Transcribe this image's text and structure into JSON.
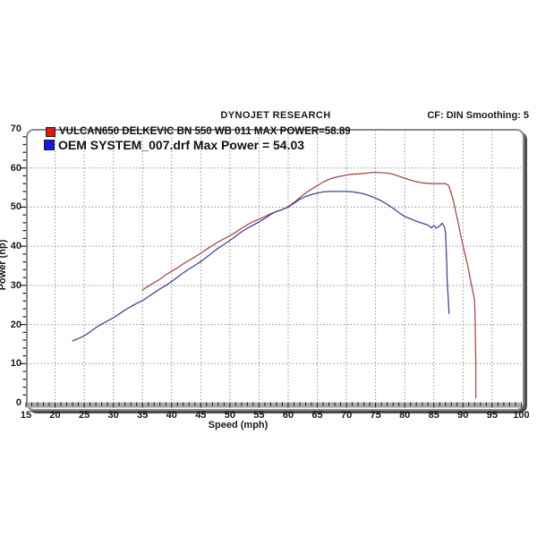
{
  "header": {
    "brand": "DYNOJET RESEARCH",
    "settings": "CF: DIN  Smoothing: 5"
  },
  "legend": {
    "swatch_colors": [
      "#e01818",
      "#1818e0"
    ]
  },
  "chart_data": {
    "type": "line",
    "title": "DYNOJET RESEARCH",
    "xlabel": "Speed (mph)",
    "ylabel": "Power (hp)",
    "xlim": [
      15,
      100
    ],
    "ylim": [
      0,
      70
    ],
    "x_ticks": [
      15,
      20,
      25,
      30,
      35,
      40,
      45,
      50,
      55,
      60,
      65,
      70,
      75,
      80,
      85,
      90,
      95,
      100
    ],
    "y_ticks": [
      0,
      10,
      20,
      30,
      40,
      50,
      60,
      70
    ],
    "x_minor_step": 1,
    "y_minor_step": 2,
    "grid": "dotted",
    "grid_color": "#8f8f8f",
    "legend_position": "top-left",
    "series": [
      {
        "name": "VULCAN650 DELKEVIC BN 550 WB 011 MAX POWER=58.89",
        "max_power": 58.89,
        "color": "#a84a4a",
        "points": [
          [
            35,
            28.8
          ],
          [
            36,
            29.8
          ],
          [
            37,
            30.7
          ],
          [
            38,
            31.6
          ],
          [
            39,
            32.7
          ],
          [
            40,
            33.6
          ],
          [
            41,
            34.5
          ],
          [
            42,
            35.5
          ],
          [
            43,
            36.4
          ],
          [
            44,
            37.3
          ],
          [
            45,
            38.2
          ],
          [
            46,
            39.2
          ],
          [
            47,
            40.2
          ],
          [
            48,
            41.1
          ],
          [
            49,
            41.9
          ],
          [
            50,
            42.7
          ],
          [
            51,
            43.6
          ],
          [
            52,
            44.6
          ],
          [
            53,
            45.5
          ],
          [
            54,
            46.3
          ],
          [
            55,
            46.9
          ],
          [
            56,
            47.6
          ],
          [
            57,
            48.3
          ],
          [
            58,
            48.9
          ],
          [
            59,
            49.4
          ],
          [
            60,
            50.1
          ],
          [
            61,
            51.2
          ],
          [
            62,
            52.4
          ],
          [
            63,
            53.6
          ],
          [
            64,
            54.6
          ],
          [
            65,
            55.5
          ],
          [
            66,
            56.4
          ],
          [
            67,
            57.1
          ],
          [
            68,
            57.6
          ],
          [
            69,
            57.9
          ],
          [
            70,
            58.2
          ],
          [
            71,
            58.4
          ],
          [
            72,
            58.5
          ],
          [
            73,
            58.6
          ],
          [
            74,
            58.8
          ],
          [
            75,
            58.9
          ],
          [
            76,
            58.8
          ],
          [
            77,
            58.7
          ],
          [
            78,
            58.4
          ],
          [
            79,
            57.9
          ],
          [
            80,
            57.4
          ],
          [
            81,
            56.9
          ],
          [
            82,
            56.5
          ],
          [
            83,
            56.2
          ],
          [
            84,
            56.1
          ],
          [
            85,
            56.0
          ],
          [
            86,
            56.0
          ],
          [
            87,
            56.0
          ],
          [
            87.5,
            55.6
          ],
          [
            88,
            53.5
          ],
          [
            88.4,
            51.3
          ],
          [
            88.8,
            48.5
          ],
          [
            89.2,
            45.9
          ],
          [
            89.6,
            42.8
          ],
          [
            90,
            40.2
          ],
          [
            90.4,
            37.7
          ],
          [
            90.8,
            35.2
          ],
          [
            91.2,
            32.0
          ],
          [
            91.5,
            29.8
          ],
          [
            91.8,
            27.7
          ],
          [
            92,
            26.0
          ],
          [
            92.1,
            20.0
          ],
          [
            92.2,
            10.0
          ],
          [
            92.2,
            1.2
          ]
        ]
      },
      {
        "name": "OEM SYSTEM_007.drf Max Power = 54.03",
        "max_power": 54.03,
        "color": "#44478f",
        "points": [
          [
            23,
            15.8
          ],
          [
            24,
            16.4
          ],
          [
            25,
            17.1
          ],
          [
            26,
            18.1
          ],
          [
            27,
            19.2
          ],
          [
            28,
            20.1
          ],
          [
            29,
            20.9
          ],
          [
            30,
            21.7
          ],
          [
            31,
            22.7
          ],
          [
            32,
            23.7
          ],
          [
            33,
            24.6
          ],
          [
            34,
            25.4
          ],
          [
            35,
            26.1
          ],
          [
            36,
            27.1
          ],
          [
            37,
            28.1
          ],
          [
            38,
            29.1
          ],
          [
            39,
            30.0
          ],
          [
            40,
            31.0
          ],
          [
            41,
            32.1
          ],
          [
            42,
            33.2
          ],
          [
            43,
            34.2
          ],
          [
            44,
            35.1
          ],
          [
            45,
            36.1
          ],
          [
            46,
            37.2
          ],
          [
            47,
            38.4
          ],
          [
            48,
            39.5
          ],
          [
            49,
            40.5
          ],
          [
            50,
            41.5
          ],
          [
            51,
            42.6
          ],
          [
            52,
            43.7
          ],
          [
            53,
            44.6
          ],
          [
            54,
            45.4
          ],
          [
            55,
            46.2
          ],
          [
            56,
            47.1
          ],
          [
            57,
            48.1
          ],
          [
            58,
            48.9
          ],
          [
            59,
            49.4
          ],
          [
            60,
            50.0
          ],
          [
            61,
            51.0
          ],
          [
            62,
            52.0
          ],
          [
            63,
            52.7
          ],
          [
            64,
            53.2
          ],
          [
            65,
            53.6
          ],
          [
            66,
            53.9
          ],
          [
            67,
            54.0
          ],
          [
            68,
            54.0
          ],
          [
            69,
            54.0
          ],
          [
            70,
            54.0
          ],
          [
            71,
            53.9
          ],
          [
            72,
            53.7
          ],
          [
            73,
            53.4
          ],
          [
            74,
            52.9
          ],
          [
            75,
            52.3
          ],
          [
            76,
            51.6
          ],
          [
            77,
            50.7
          ],
          [
            78,
            49.7
          ],
          [
            79,
            48.6
          ],
          [
            80,
            47.6
          ],
          [
            81,
            47.0
          ],
          [
            82,
            46.4
          ],
          [
            83,
            45.9
          ],
          [
            84,
            45.4
          ],
          [
            84.6,
            44.7
          ],
          [
            85,
            45.3
          ],
          [
            85.4,
            44.6
          ],
          [
            86,
            45.2
          ],
          [
            86.4,
            45.9
          ],
          [
            86.8,
            45.0
          ],
          [
            87,
            43.5
          ],
          [
            87.1,
            40.0
          ],
          [
            87.2,
            36.0
          ],
          [
            87.3,
            31.0
          ],
          [
            87.5,
            26.0
          ],
          [
            87.6,
            22.8
          ]
        ]
      }
    ]
  }
}
